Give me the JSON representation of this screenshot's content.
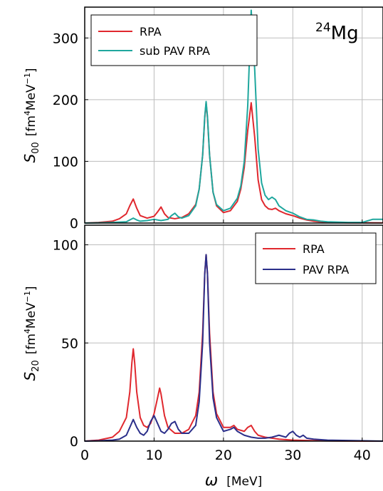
{
  "x_axis": {
    "symbol": "ω",
    "unit": "[MeV]",
    "range": [
      0,
      43
    ],
    "ticks": [
      0,
      10,
      20,
      30,
      40
    ]
  },
  "chart_data": [
    {
      "type": "line",
      "nucleus": {
        "mass_number": "24",
        "symbol": "Mg"
      },
      "ylabel": {
        "symbol": "S",
        "sub": "00",
        "unit": "[fm",
        "unit_sup1": "4",
        "unit_mid": "MeV",
        "unit_sup2": "−1",
        "unit_end": "]"
      },
      "xlim": [
        0,
        43
      ],
      "ylim": [
        0,
        350
      ],
      "yticks": [
        0,
        100,
        200,
        300
      ],
      "grid": true,
      "legend_position": "top-left",
      "series": [
        {
          "name": "RPA",
          "color": "#e0282e",
          "x": [
            0,
            2,
            4,
            5,
            6,
            6.5,
            7,
            7.5,
            8,
            9,
            10,
            10.5,
            11,
            11.5,
            12,
            13,
            14,
            15,
            16,
            16.5,
            17,
            17.3,
            17.5,
            17.7,
            18,
            18.5,
            19,
            20,
            21,
            22,
            22.5,
            23,
            23.5,
            24,
            24.5,
            25,
            25.5,
            26,
            26.5,
            27,
            27.5,
            28,
            29,
            30,
            31,
            32,
            33,
            34,
            35,
            38,
            40,
            43
          ],
          "values": [
            0,
            1,
            3,
            7,
            15,
            28,
            39,
            24,
            12,
            8,
            11,
            18,
            26,
            15,
            9,
            7,
            9,
            15,
            30,
            55,
            110,
            170,
            195,
            170,
            110,
            50,
            28,
            17,
            20,
            35,
            55,
            90,
            150,
            195,
            140,
            70,
            38,
            28,
            23,
            22,
            24,
            20,
            15,
            12,
            8,
            5,
            3,
            2,
            1,
            0.5,
            0.5,
            0.3
          ]
        },
        {
          "name": "sub PAV RPA",
          "color": "#1fa79e",
          "x": [
            0,
            2,
            4,
            6,
            6.5,
            7,
            7.5,
            8,
            9,
            10,
            11,
            12,
            12.5,
            13,
            13.5,
            14,
            15,
            16,
            16.5,
            17,
            17.3,
            17.5,
            17.7,
            18,
            18.5,
            19,
            20,
            21,
            22,
            22.5,
            23,
            23.5,
            24,
            24.5,
            25,
            25.5,
            26,
            26.5,
            27,
            27.5,
            28,
            29,
            30,
            31,
            32,
            33,
            34,
            35,
            38,
            40,
            41.5,
            43
          ],
          "values": [
            0,
            0.5,
            1,
            2,
            5,
            8,
            5,
            3,
            4,
            6,
            4,
            6,
            12,
            16,
            10,
            8,
            12,
            28,
            55,
            110,
            172,
            197,
            172,
            110,
            50,
            30,
            20,
            24,
            40,
            60,
            100,
            190,
            345,
            250,
            120,
            65,
            45,
            38,
            42,
            38,
            28,
            20,
            16,
            10,
            6,
            5,
            3,
            2,
            1,
            1,
            6,
            6
          ]
        }
      ]
    },
    {
      "type": "line",
      "ylabel": {
        "symbol": "S",
        "sub": "20",
        "unit": "[fm",
        "unit_sup1": "4",
        "unit_mid": "MeV",
        "unit_sup2": "−1",
        "unit_end": "]"
      },
      "xlim": [
        0,
        43
      ],
      "ylim": [
        0,
        110
      ],
      "yticks": [
        0,
        50,
        100
      ],
      "grid": true,
      "legend_position": "top-right",
      "series": [
        {
          "name": "RPA",
          "color": "#e0282e",
          "x": [
            0,
            2,
            4,
            5,
            6,
            6.5,
            6.8,
            7,
            7.2,
            7.5,
            8,
            8.5,
            9,
            9.5,
            10,
            10.5,
            10.8,
            11,
            11.5,
            12,
            13,
            14,
            15,
            16,
            16.5,
            17,
            17.3,
            17.5,
            17.7,
            18,
            18.5,
            19,
            20,
            21,
            21.5,
            22,
            23,
            23.5,
            24,
            24.5,
            25,
            26,
            28,
            30,
            32,
            34,
            36,
            40,
            43
          ],
          "values": [
            0,
            0.5,
            2,
            5,
            12,
            25,
            40,
            47,
            40,
            25,
            12,
            8,
            7,
            9,
            14,
            22,
            27,
            24,
            13,
            7,
            4,
            4,
            6,
            13,
            25,
            55,
            85,
            95,
            85,
            55,
            25,
            14,
            7,
            7,
            8,
            6,
            5,
            7,
            8,
            5,
            3,
            2,
            1,
            0.5,
            0.3,
            0.2,
            0.1,
            0,
            0
          ]
        },
        {
          "name": "PAV RPA",
          "color": "#2b2f8a",
          "x": [
            0,
            2,
            4,
            5,
            6,
            6.5,
            7,
            7.5,
            8,
            8.5,
            9,
            9.5,
            10,
            10.5,
            11,
            11.5,
            12,
            12.5,
            13,
            13.5,
            14,
            15,
            16,
            16.5,
            17,
            17.3,
            17.5,
            17.7,
            18,
            18.5,
            19,
            20,
            21,
            21.5,
            22,
            23,
            24,
            25,
            26,
            27,
            28,
            29,
            29.5,
            30,
            30.5,
            31,
            31.5,
            32,
            33,
            35,
            40,
            43
          ],
          "values": [
            0,
            0.2,
            0.5,
            1,
            3,
            7,
            11,
            7,
            4,
            3,
            5,
            10,
            13,
            9,
            5,
            4,
            6,
            9,
            10,
            6,
            4,
            4,
            8,
            20,
            50,
            85,
            95,
            85,
            50,
            22,
            12,
            5,
            6,
            7,
            5,
            3,
            2,
            1.5,
            1.5,
            2,
            3,
            2,
            4,
            5,
            3,
            2,
            3,
            1.5,
            1,
            0.5,
            0.2,
            0
          ]
        }
      ]
    }
  ]
}
